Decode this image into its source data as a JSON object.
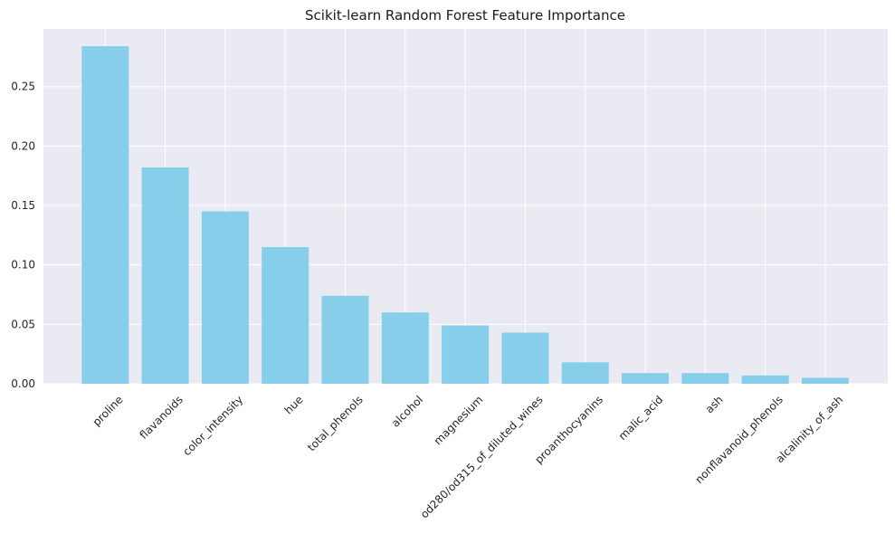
{
  "chart_data": {
    "type": "bar",
    "title": "Scikit-learn Random Forest Feature Importance",
    "xlabel": "",
    "ylabel": "",
    "categories": [
      "proline",
      "flavanoids",
      "color_intensity",
      "hue",
      "total_phenols",
      "alcohol",
      "magnesium",
      "od280/od315_of_diluted_wines",
      "proanthocyanins",
      "malic_acid",
      "ash",
      "nonflavanoid_phenols",
      "alcalinity_of_ash"
    ],
    "values": [
      0.284,
      0.182,
      0.145,
      0.115,
      0.074,
      0.06,
      0.049,
      0.043,
      0.018,
      0.009,
      0.009,
      0.007,
      0.005
    ],
    "ylim": [
      0,
      0.2985
    ],
    "yticks": [
      0.0,
      0.05,
      0.1,
      0.15,
      0.2,
      0.25
    ],
    "ytick_labels": [
      "0.00",
      "0.05",
      "0.10",
      "0.15",
      "0.20",
      "0.25"
    ],
    "grid": true,
    "legend": "none",
    "bar_color": "#87CEEB",
    "background_color": "#EAEAF2",
    "grid_color": "#FFFFFF"
  }
}
